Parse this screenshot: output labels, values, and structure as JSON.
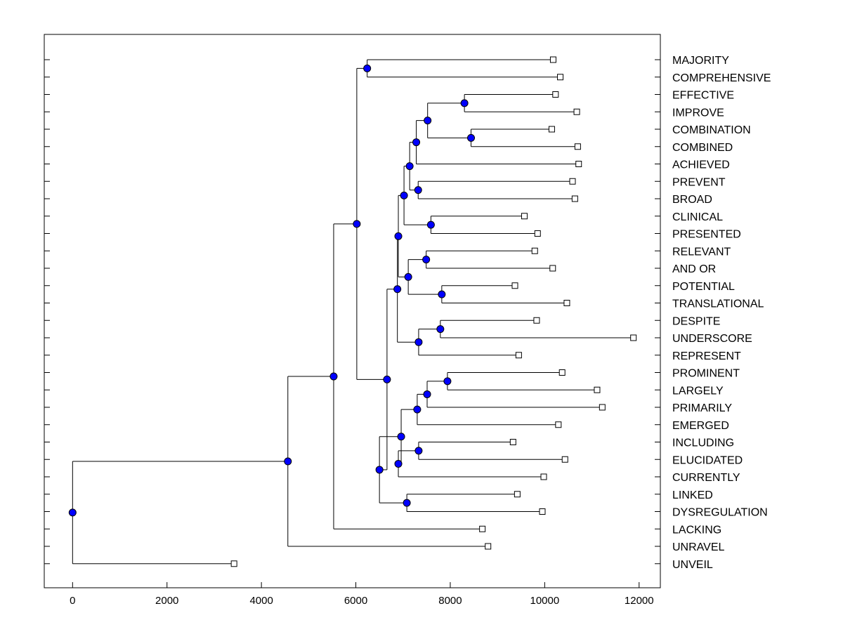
{
  "chart_data": {
    "type": "dendrogram",
    "title": "",
    "xlabel": "",
    "ylabel": "",
    "xlim": [
      -600,
      12450
    ],
    "x_ticks": [
      0,
      2000,
      4000,
      6000,
      8000,
      10000,
      12000
    ],
    "x_tick_labels": [
      "0",
      "2000",
      "4000",
      "6000",
      "8000",
      "10000",
      "12000"
    ],
    "node_color": "#0000ff",
    "leaves": [
      {
        "label": "MAJORITY",
        "x": 10180
      },
      {
        "label": "COMPREHENSIVE",
        "x": 10330
      },
      {
        "label": "EFFECTIVE",
        "x": 10230
      },
      {
        "label": "IMPROVE",
        "x": 10680
      },
      {
        "label": "COMBINATION",
        "x": 10150
      },
      {
        "label": "COMBINED",
        "x": 10700
      },
      {
        "label": "ACHIEVED",
        "x": 10720
      },
      {
        "label": "PREVENT",
        "x": 10590
      },
      {
        "label": "BROAD",
        "x": 10640
      },
      {
        "label": "CLINICAL",
        "x": 9570
      },
      {
        "label": "PRESENTED",
        "x": 9850
      },
      {
        "label": "RELEVANT",
        "x": 9790
      },
      {
        "label": "AND OR",
        "x": 10170
      },
      {
        "label": "POTENTIAL",
        "x": 9370
      },
      {
        "label": "TRANSLATIONAL",
        "x": 10470
      },
      {
        "label": "DESPITE",
        "x": 9830
      },
      {
        "label": "UNDERSCORE",
        "x": 11880
      },
      {
        "label": "REPRESENT",
        "x": 9450
      },
      {
        "label": "PROMINENT",
        "x": 10370
      },
      {
        "label": "LARGELY",
        "x": 11110
      },
      {
        "label": "PRIMARILY",
        "x": 11220
      },
      {
        "label": "EMERGED",
        "x": 10290
      },
      {
        "label": "INCLUDING",
        "x": 9330
      },
      {
        "label": "ELUCIDATED",
        "x": 10430
      },
      {
        "label": "CURRENTLY",
        "x": 9980
      },
      {
        "label": "LINKED",
        "x": 9420
      },
      {
        "label": "DYSREGULATION",
        "x": 9950
      },
      {
        "label": "LACKING",
        "x": 8680
      },
      {
        "label": "UNRAVEL",
        "x": 8800
      },
      {
        "label": "UNVEIL",
        "x": 3420
      }
    ],
    "merges": [
      {
        "id": "n1",
        "x": 6240,
        "children": [
          "L0",
          "L1"
        ]
      },
      {
        "id": "n2",
        "x": 8300,
        "children": [
          "L2",
          "L3"
        ]
      },
      {
        "id": "n3",
        "x": 8440,
        "children": [
          "L4",
          "L5"
        ]
      },
      {
        "id": "n4",
        "x": 7520,
        "children": [
          "n2",
          "n3"
        ]
      },
      {
        "id": "n5",
        "x": 7280,
        "children": [
          "n4",
          "L6"
        ]
      },
      {
        "id": "n6",
        "x": 7320,
        "children": [
          "L7",
          "L8"
        ]
      },
      {
        "id": "n7",
        "x": 7140,
        "children": [
          "n5",
          "n6"
        ]
      },
      {
        "id": "n8",
        "x": 7590,
        "children": [
          "L9",
          "L10"
        ]
      },
      {
        "id": "n9",
        "x": 7020,
        "children": [
          "n7",
          "n8"
        ]
      },
      {
        "id": "n10",
        "x": 7490,
        "children": [
          "L11",
          "L12"
        ]
      },
      {
        "id": "n11",
        "x": 7820,
        "children": [
          "L13",
          "L14"
        ]
      },
      {
        "id": "n12",
        "x": 7110,
        "children": [
          "n10",
          "n11"
        ]
      },
      {
        "id": "n13",
        "x": 6900,
        "children": [
          "n9",
          "n12"
        ]
      },
      {
        "id": "n14",
        "x": 7790,
        "children": [
          "L15",
          "L16"
        ]
      },
      {
        "id": "n15",
        "x": 7330,
        "children": [
          "n14",
          "L17"
        ]
      },
      {
        "id": "n16",
        "x": 6880,
        "children": [
          "n13",
          "n15"
        ]
      },
      {
        "id": "n17",
        "x": 7940,
        "children": [
          "L18",
          "L19"
        ]
      },
      {
        "id": "n18",
        "x": 7510,
        "children": [
          "n17",
          "L20"
        ]
      },
      {
        "id": "n19",
        "x": 7300,
        "children": [
          "n18",
          "L21"
        ]
      },
      {
        "id": "n20",
        "x": 7330,
        "children": [
          "L22",
          "L23"
        ]
      },
      {
        "id": "n21",
        "x": 6900,
        "children": [
          "n20",
          "L24"
        ]
      },
      {
        "id": "n22",
        "x": 6960,
        "children": [
          "n19",
          "n21"
        ]
      },
      {
        "id": "n23",
        "x": 7080,
        "children": [
          "L25",
          "L26"
        ]
      },
      {
        "id": "n24",
        "x": 6500,
        "children": [
          "n22",
          "n23"
        ]
      },
      {
        "id": "n25",
        "x": 6660,
        "children": [
          "n16",
          "n24"
        ]
      },
      {
        "id": "n26",
        "x": 6020,
        "children": [
          "n1",
          "n25"
        ]
      },
      {
        "id": "n27",
        "x": 5530,
        "children": [
          "n26",
          "L27"
        ]
      },
      {
        "id": "n28",
        "x": 4560,
        "children": [
          "n27",
          "L28"
        ]
      },
      {
        "id": "n29",
        "x": 0,
        "children": [
          "n28",
          "L29"
        ]
      }
    ]
  }
}
